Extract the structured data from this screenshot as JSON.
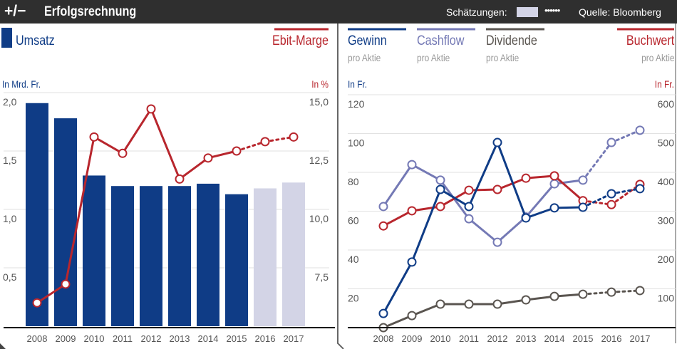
{
  "header": {
    "logo": "+/−",
    "title": "Erfolgsrechnung",
    "estimates_label": "Schätzungen:",
    "estimate_dots": "••••••",
    "source": "Quelle: Bloomberg"
  },
  "colors": {
    "umsatz": "#0f3c86",
    "umsatz_estimate": "#d3d4e6",
    "ebit": "#b8262d",
    "gewinn": "#0f3c86",
    "cashflow": "#7479b5",
    "dividende": "#5a5550",
    "buchwert": "#b8262d"
  },
  "chart_data": [
    {
      "type": "bar",
      "categories": [
        "2008",
        "2009",
        "2010",
        "2011",
        "2012",
        "2013",
        "2014",
        "2015",
        "2016",
        "2017"
      ],
      "estimated_from": "2016",
      "series": [
        {
          "name": "Umsatz",
          "axis": "left",
          "values": [
            1.91,
            1.78,
            1.29,
            1.2,
            1.2,
            1.2,
            1.22,
            1.13,
            1.18,
            1.23
          ]
        },
        {
          "name": "Ebit-Marge",
          "axis": "right",
          "type": "line",
          "values": [
            6.0,
            6.8,
            13.1,
            12.4,
            14.3,
            11.3,
            12.2,
            12.5,
            12.9,
            13.1
          ]
        }
      ],
      "left_unit": "In Mrd. Fr.",
      "right_unit": "In %",
      "ylim_left": [
        0,
        2
      ],
      "ylim_right": [
        5,
        15
      ],
      "left_ticks": [
        "2,0",
        "1,5",
        "1,0",
        "0,5"
      ],
      "right_ticks": [
        "15,0",
        "12,5",
        "10,0",
        "7,5"
      ],
      "grid": true
    },
    {
      "type": "line",
      "categories": [
        "2008",
        "2009",
        "2010",
        "2011",
        "2012",
        "2013",
        "2014",
        "2015",
        "2016",
        "2017"
      ],
      "estimated_from": "2016",
      "series": [
        {
          "name": "Gewinn",
          "subtitle": "pro Aktie",
          "axis": "left",
          "values": [
            7.3,
            33.8,
            71.2,
            62.4,
            95.4,
            56.5,
            61.7,
            62.0,
            69.0,
            71.6
          ]
        },
        {
          "name": "Cashflow",
          "subtitle": "pro Aktie",
          "axis": "left",
          "values": [
            62.4,
            84.0,
            76.0,
            56.1,
            44.0,
            57.0,
            74.1,
            76.0,
            95.4,
            101.7
          ]
        },
        {
          "name": "Dividende",
          "subtitle": "pro Aktie",
          "axis": "left",
          "values": [
            0,
            6.2,
            12.1,
            12.1,
            12.1,
            14.3,
            16.1,
            17.2,
            18.3,
            19.1
          ]
        },
        {
          "name": "Buchwert",
          "subtitle": "pro Aktie",
          "axis": "right",
          "values": [
            262,
            301,
            312,
            354,
            356,
            385,
            391,
            327,
            317,
            369
          ]
        }
      ],
      "left_unit": "In Fr.",
      "right_unit": "In Fr.",
      "ylim_left": [
        0,
        120
      ],
      "ylim_right": [
        0,
        600
      ],
      "left_ticks": [
        "120",
        "100",
        "80",
        "60",
        "40",
        "20"
      ],
      "right_ticks": [
        "600",
        "500",
        "400",
        "300",
        "200",
        "100"
      ],
      "grid": true
    }
  ]
}
